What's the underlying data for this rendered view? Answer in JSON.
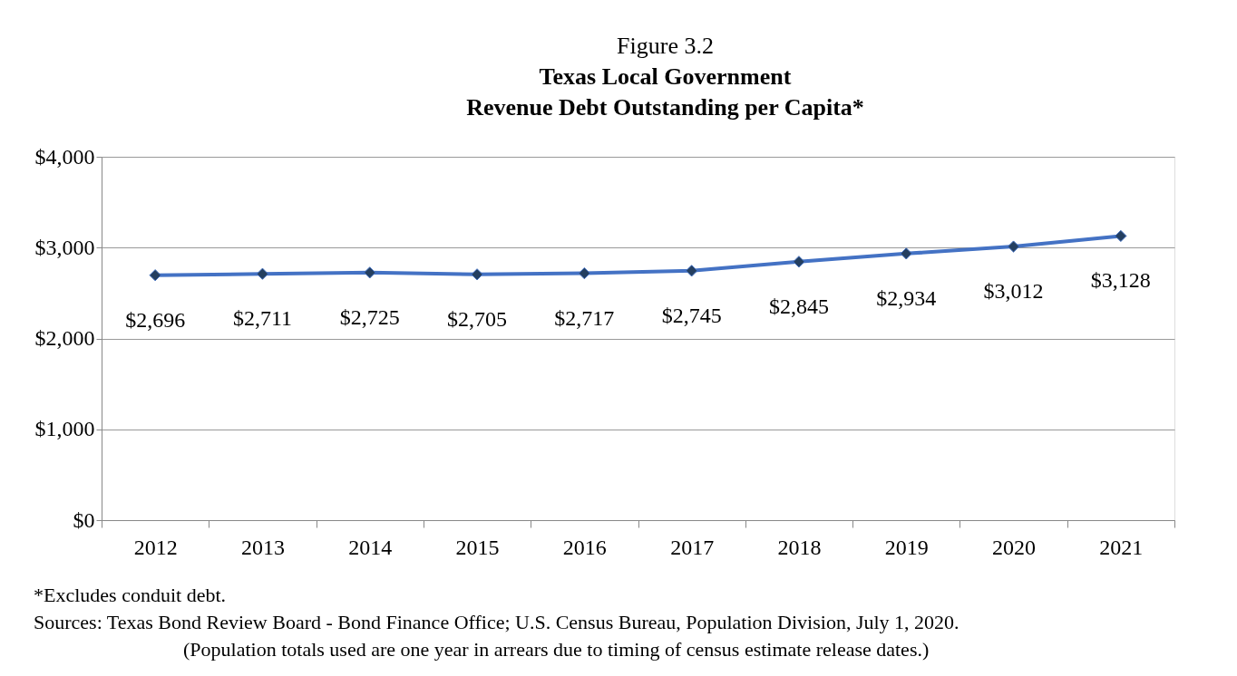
{
  "chart_data": {
    "type": "line",
    "title": "Figure 3.2\nTexas Local Government\nRevenue Debt Outstanding per Capita*",
    "categories": [
      "2012",
      "2013",
      "2014",
      "2015",
      "2016",
      "2017",
      "2018",
      "2019",
      "2020",
      "2021"
    ],
    "series": [
      {
        "color": "#4472c4",
        "values": [
          2696,
          2711,
          2725,
          2705,
          2717,
          2745,
          2845,
          2934,
          3012,
          3128
        ]
      }
    ],
    "value_labels": [
      "$2,696",
      "$2,711",
      "$2,725",
      "$2,705",
      "$2,717",
      "$2,745",
      "$2,845",
      "$2,934",
      "$3,012",
      "$3,128"
    ],
    "ylim": [
      0,
      4000
    ],
    "yticks": [
      {
        "value": 0,
        "label": "$0"
      },
      {
        "value": 1000,
        "label": "$1,000"
      },
      {
        "value": 2000,
        "label": "$2,000"
      },
      {
        "value": 3000,
        "label": "$3,000"
      },
      {
        "value": 4000,
        "label": "$4,000"
      }
    ],
    "grid": "y",
    "marker": "diamond",
    "line_style": "solid",
    "annotations": [
      "*Excludes conduit debt.",
      "Sources: Texas Bond Review Board - Bond Finance Office; U.S. Census Bureau, Population Division, July 1, 2020.",
      "(Population totals used are one year in arrears due to timing of census estimate release dates.)"
    ]
  }
}
